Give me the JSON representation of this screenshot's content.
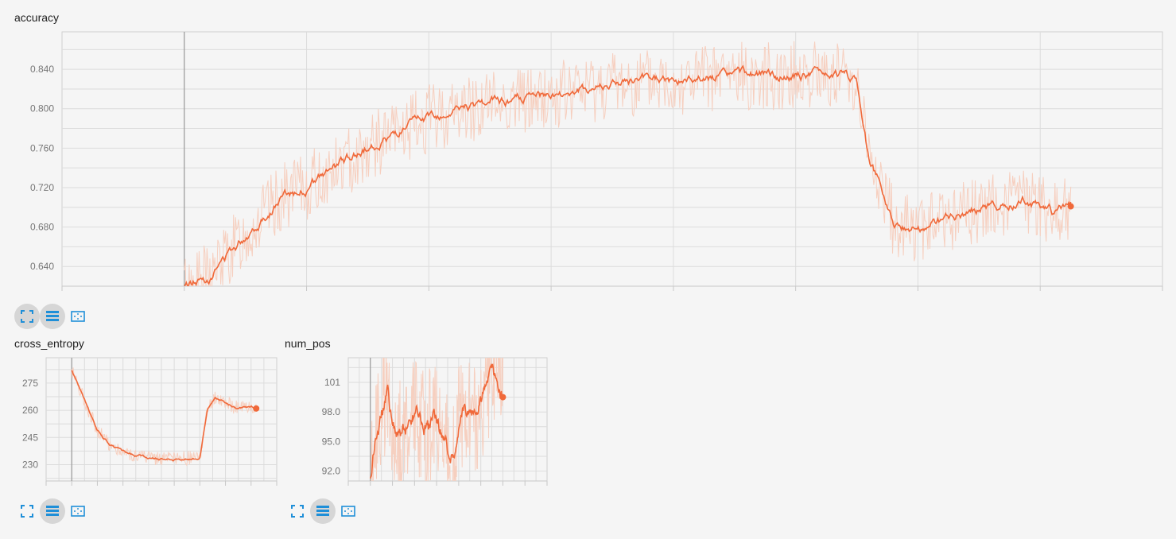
{
  "colors": {
    "accent": "#f0693a",
    "raw": "#f6cfbf",
    "grid": "#dcdcdc",
    "axis": "#b0b0b0",
    "icon": "#1f8fd8"
  },
  "cards": [
    {
      "id": "accuracy",
      "title": "accuracy",
      "toolbar": {
        "expand_icon": "expand-icon",
        "log_icon": "data-table-icon",
        "fit_icon": "fit-domain-icon"
      }
    },
    {
      "id": "cross_entropy",
      "title": "cross_entropy",
      "toolbar": {
        "expand_icon": "expand-icon",
        "log_icon": "data-table-icon",
        "fit_icon": "fit-domain-icon"
      }
    },
    {
      "id": "num_pos",
      "title": "num_pos",
      "toolbar": {
        "expand_icon": "expand-icon",
        "log_icon": "data-table-icon",
        "fit_icon": "fit-domain-icon"
      }
    }
  ],
  "chart_data": [
    {
      "type": "line",
      "title": "accuracy",
      "ylim": [
        0.62,
        0.878
      ],
      "xlim": [
        0,
        9
      ],
      "yticks": [
        "0.640",
        "0.680",
        "0.720",
        "0.760",
        "0.800",
        "0.840"
      ],
      "ytick_values": [
        0.64,
        0.68,
        0.72,
        0.76,
        0.8,
        0.84
      ],
      "x_start": 1.0,
      "x_end": 8.25,
      "series": [
        {
          "x": [
            1.0,
            1.2,
            1.5,
            1.8,
            2.0,
            2.5,
            3.0,
            3.5,
            4.0,
            4.5,
            5.0,
            5.5,
            6.0,
            6.3,
            6.5,
            6.6,
            6.8,
            7.0,
            7.3,
            7.6,
            7.9,
            8.1,
            8.25
          ],
          "values": [
            0.62,
            0.63,
            0.672,
            0.71,
            0.72,
            0.76,
            0.79,
            0.806,
            0.812,
            0.825,
            0.828,
            0.833,
            0.834,
            0.835,
            0.83,
            0.75,
            0.685,
            0.678,
            0.69,
            0.7,
            0.708,
            0.695,
            0.701
          ]
        }
      ],
      "raw_noise": 0.035
    },
    {
      "type": "line",
      "title": "cross_entropy",
      "ylim": [
        221,
        289
      ],
      "xlim": [
        0,
        9
      ],
      "yticks": [
        "230",
        "245",
        "260",
        "275"
      ],
      "ytick_values": [
        230,
        245,
        260,
        275
      ],
      "x_start": 1.0,
      "x_end": 8.2,
      "series": [
        {
          "x": [
            1.0,
            1.2,
            1.6,
            2.0,
            2.5,
            3.0,
            3.5,
            4.0,
            4.5,
            5.0,
            5.5,
            6.0,
            6.3,
            6.6,
            7.0,
            7.5,
            8.0,
            8.2
          ],
          "values": [
            282,
            276,
            262,
            249,
            241,
            237,
            235,
            234,
            233.5,
            233,
            233.5,
            233.5,
            260,
            267,
            264,
            261,
            262,
            261
          ]
        }
      ],
      "raw_noise": 4
    },
    {
      "type": "line",
      "title": "num_pos",
      "ylim": [
        91,
        103.5
      ],
      "xlim": [
        0,
        9
      ],
      "yticks": [
        "92.0",
        "95.0",
        "98.0",
        "101"
      ],
      "ytick_values": [
        92,
        95,
        98,
        101
      ],
      "x_start": 1.0,
      "x_end": 7.0,
      "series": [
        {
          "x": [
            1.0,
            1.2,
            1.5,
            1.8,
            2.0,
            2.3,
            2.6,
            3.0,
            3.5,
            4.0,
            4.3,
            4.5,
            4.7,
            5.0,
            5.4,
            5.8,
            6.2,
            6.5,
            6.8,
            7.0
          ],
          "values": [
            91,
            95,
            98,
            100,
            97,
            95.5,
            96.5,
            98,
            96.5,
            97,
            96,
            94,
            93,
            97,
            98.5,
            97.5,
            100,
            102.5,
            101,
            99.5
          ]
        }
      ],
      "raw_noise": 6
    }
  ]
}
